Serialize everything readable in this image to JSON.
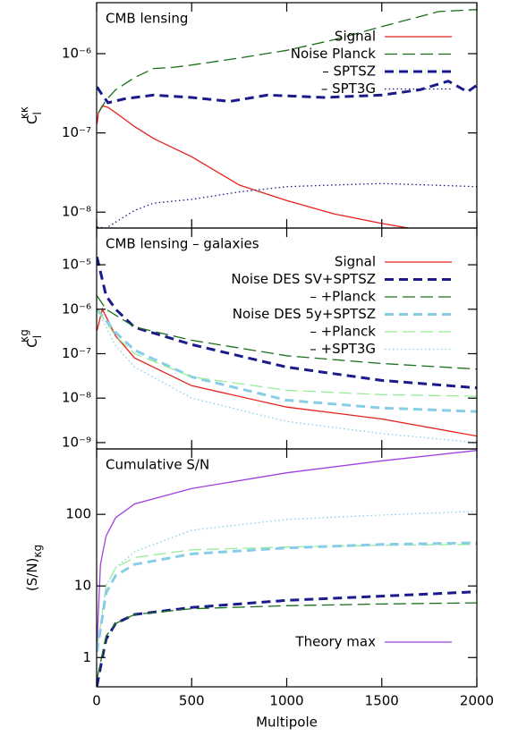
{
  "chart_data": [
    {
      "type": "line",
      "title": "CMB lensing",
      "ylabel": "C",
      "ylabel_sub": "l",
      "ylabel_sup": "κκ",
      "log_y": true,
      "legend": "upper right",
      "xlim": [
        0,
        2000
      ],
      "xticks": [
        0,
        500,
        1000,
        1500,
        2000
      ],
      "ylim": [
        6.3e-09,
        4.4e-06
      ],
      "yticks": [
        {
          "value": 1e-08,
          "label": "10⁻⁸"
        },
        {
          "value": 1e-07,
          "label": "10⁻⁷"
        },
        {
          "value": 1e-06,
          "label": "10⁻⁶"
        }
      ],
      "series": [
        {
          "name": "Signal",
          "color": "#e8201c",
          "style": "solid",
          "width": 1.3,
          "x": [
            2,
            10,
            30,
            60,
            100,
            200,
            300,
            500,
            750,
            1000,
            1250,
            1500,
            1640
          ],
          "values": [
            1.3e-07,
            1.8e-07,
            2.2e-07,
            2.1e-07,
            1.8e-07,
            1.2e-07,
            8.5e-08,
            5e-08,
            2.2e-08,
            1.4e-08,
            9.5e-09,
            7.2e-09,
            6.3e-09
          ]
        },
        {
          "name": "Noise Planck",
          "color": "#1a6e1a",
          "style": "dashed",
          "width": 1.3,
          "x": [
            10,
            50,
            100,
            200,
            300,
            400,
            500,
            750,
            1000,
            1250,
            1500,
            1800,
            2000
          ],
          "values": [
            1.8e-07,
            2.6e-07,
            3.5e-07,
            5e-07,
            6.5e-07,
            6.7e-07,
            7.2e-07,
            8.8e-07,
            1.1e-06,
            1.5e-06,
            2.2e-06,
            3.4e-06,
            3.6e-06
          ]
        },
        {
          "name": "– SPTSZ",
          "color": "#1a1a8c",
          "style": "thickdash",
          "width": 3,
          "x": [
            2,
            30,
            60,
            150,
            300,
            500,
            700,
            900,
            1200,
            1500,
            1700,
            1850,
            1950,
            2000
          ],
          "values": [
            3.8e-07,
            3e-07,
            2.4e-07,
            2.7e-07,
            3e-07,
            2.8e-07,
            2.5e-07,
            3e-07,
            2.8e-07,
            3e-07,
            3.5e-07,
            4.5e-07,
            3.3e-07,
            4e-07
          ]
        },
        {
          "name": "– SPT3G",
          "color": "#1a1a8c",
          "style": "dotted",
          "width": 1.3,
          "x": [
            2,
            50,
            100,
            200,
            300,
            500,
            750,
            1000,
            1250,
            1500,
            1750,
            2000
          ],
          "values": [
            6.5e-09,
            6.3e-09,
            7.5e-09,
            1.05e-08,
            1.3e-08,
            1.45e-08,
            1.8e-08,
            2.1e-08,
            2.2e-08,
            2.3e-08,
            2.2e-08,
            2.1e-08
          ]
        }
      ]
    },
    {
      "type": "line",
      "title": "CMB lensing – galaxies",
      "ylabel": "C",
      "ylabel_sub": "l",
      "ylabel_sup": "κg",
      "log_y": true,
      "legend": "upper right",
      "xlim": [
        0,
        2000
      ],
      "xticks": [
        0,
        500,
        1000,
        1500,
        2000
      ],
      "ylim": [
        7.2e-10,
        6.7e-05
      ],
      "yticks": [
        {
          "value": 1e-09,
          "label": "10⁻⁹"
        },
        {
          "value": 1e-08,
          "label": "10⁻⁸"
        },
        {
          "value": 1e-07,
          "label": "10⁻⁷"
        },
        {
          "value": 1e-06,
          "label": "10⁻⁶"
        },
        {
          "value": 1e-05,
          "label": "10⁻⁵"
        }
      ],
      "series": [
        {
          "name": "Signal",
          "color": "#e8201c",
          "style": "solid",
          "width": 1.3,
          "x": [
            2,
            30,
            100,
            200,
            500,
            1000,
            1500,
            2000
          ],
          "values": [
            3.3e-07,
            1e-06,
            2.5e-07,
            8e-08,
            1.9e-08,
            6.3e-09,
            3.4e-09,
            1.4e-09
          ]
        },
        {
          "name": "Noise DES SV+SPTSZ",
          "color": "#1a1a8c",
          "style": "thickdash",
          "width": 3,
          "x": [
            2,
            50,
            100,
            200,
            500,
            1000,
            1500,
            2000
          ],
          "values": [
            1.5e-05,
            2e-06,
            1e-06,
            3.9e-07,
            1.6e-07,
            5e-08,
            2.5e-08,
            1.7e-08
          ]
        },
        {
          "name": "– +Planck",
          "color": "#1a6e1a",
          "style": "dashed",
          "width": 1.3,
          "x": [
            2,
            50,
            200,
            500,
            1000,
            1500,
            2000
          ],
          "values": [
            2e-06,
            1e-06,
            4e-07,
            2e-07,
            9e-08,
            6e-08,
            4.5e-08
          ]
        },
        {
          "name": "Noise DES 5y+SPTSZ",
          "color": "#87cde8",
          "style": "thickdash",
          "width": 3,
          "x": [
            2,
            100,
            200,
            500,
            1000,
            1500,
            2000
          ],
          "values": [
            1e-06,
            3e-07,
            1.2e-07,
            3e-08,
            9e-09,
            6e-09,
            5e-09
          ]
        },
        {
          "name": "– +Planck",
          "color": "#98ec98",
          "style": "dashed",
          "width": 1.3,
          "x": [
            2,
            100,
            200,
            500,
            1000,
            1500,
            2000
          ],
          "values": [
            1e-06,
            2.5e-07,
            1e-07,
            3e-08,
            1.5e-08,
            1.2e-08,
            1.1e-08
          ]
        },
        {
          "name": "– +SPT3G",
          "color": "#87cde8",
          "style": "dotted",
          "width": 1.3,
          "x": [
            2,
            100,
            200,
            500,
            1000,
            1500,
            2000
          ],
          "values": [
            1e-06,
            1.5e-07,
            5e-08,
            1e-08,
            3e-09,
            1.6e-09,
            1e-09
          ]
        }
      ]
    },
    {
      "type": "line",
      "title": "Cumulative S/N",
      "ylabel": "(S/N)",
      "ylabel_sub": "κg",
      "xlabel": "Multipole",
      "log_y": true,
      "legend": "lower right",
      "xlim": [
        0,
        2000
      ],
      "xticks": [
        0,
        500,
        1000,
        1500,
        2000
      ],
      "ylim": [
        0.39,
        820
      ],
      "yticks": [
        1,
        10,
        100
      ],
      "series": [
        {
          "name": "Theory max",
          "color": "#a040e0",
          "style": "solid",
          "width": 1.3,
          "x": [
            2,
            20,
            50,
            100,
            200,
            500,
            1000,
            1500,
            2000
          ],
          "values": [
            1.5,
            20,
            50,
            90,
            140,
            230,
            380,
            560,
            780
          ]
        },
        {
          "color": "#87cde8",
          "style": "dotted",
          "width": 1.3,
          "x": [
            2,
            50,
            100,
            200,
            500,
            1000,
            1500,
            2000
          ],
          "values": [
            1.3,
            10,
            18,
            30,
            60,
            85,
            98,
            110
          ]
        },
        {
          "color": "#98ec98",
          "style": "dashed",
          "width": 1.3,
          "x": [
            2,
            50,
            100,
            200,
            500,
            1000,
            1500,
            2000
          ],
          "values": [
            1.3,
            10,
            18,
            25,
            32,
            35,
            37,
            38
          ]
        },
        {
          "color": "#87cde8",
          "style": "thickdash",
          "width": 3,
          "x": [
            2,
            50,
            100,
            200,
            500,
            1000,
            1500,
            2000
          ],
          "values": [
            1.2,
            8,
            14,
            20,
            28,
            34,
            38,
            40
          ]
        },
        {
          "color": "#1a1a8c",
          "style": "thickdash",
          "width": 3,
          "x": [
            2,
            30,
            50,
            100,
            200,
            500,
            1000,
            1500,
            2000
          ],
          "values": [
            0.4,
            1,
            1.8,
            3,
            4,
            5,
            6.3,
            7.2,
            8.3
          ]
        },
        {
          "color": "#1a6e1a",
          "style": "dashed",
          "width": 1.3,
          "x": [
            2,
            50,
            100,
            200,
            500,
            1000,
            1500,
            2000
          ],
          "values": [
            0.5,
            2,
            3,
            4,
            4.8,
            5.3,
            5.6,
            5.8
          ]
        }
      ]
    }
  ]
}
